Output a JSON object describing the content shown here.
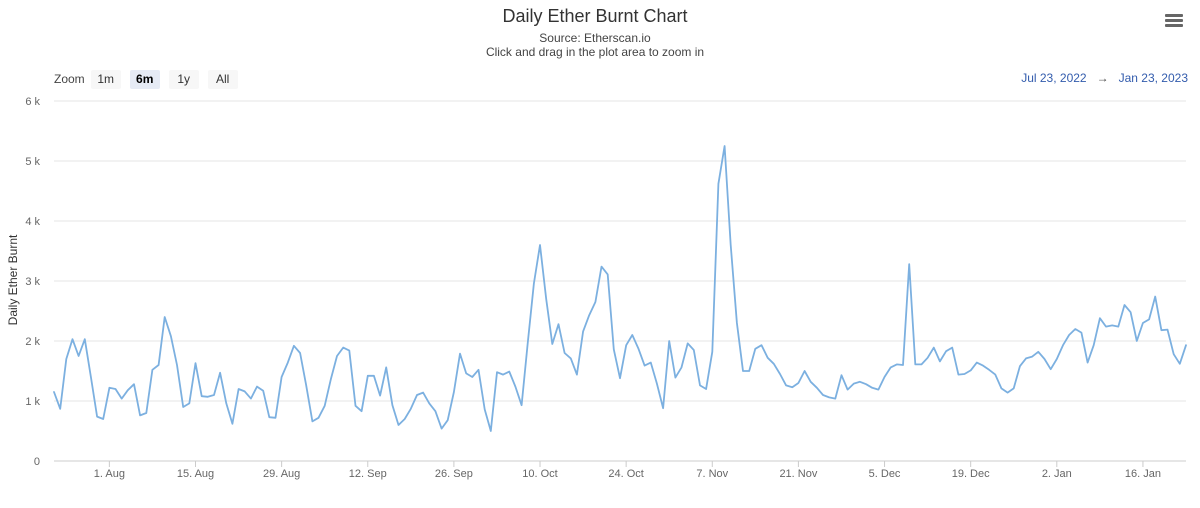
{
  "title": "Daily Ether Burnt Chart",
  "subtitle_source": "Source: Etherscan.io",
  "subtitle_hint": "Click and drag in the plot area to zoom in",
  "zoom": {
    "label": "Zoom",
    "buttons": [
      {
        "label": "1m",
        "active": false
      },
      {
        "label": "6m",
        "active": true
      },
      {
        "label": "1y",
        "active": false
      },
      {
        "label": "All",
        "active": false
      }
    ]
  },
  "range": {
    "from": "Jul 23, 2022",
    "arrow": "→",
    "to": "Jan 23, 2023"
  },
  "icons": {
    "menu": "hamburger-menu-icon"
  },
  "colors": {
    "line": "#7cb0e0",
    "grid": "#e6e6e6",
    "range_text": "#335cad"
  },
  "chart_data": {
    "type": "line",
    "title": "Daily Ether Burnt Chart",
    "xlabel": "",
    "ylabel": "Daily Ether Burnt",
    "xlim": [
      "2022-07-23",
      "2023-01-23"
    ],
    "ylim": [
      0,
      6000
    ],
    "yticks": [
      0,
      1000,
      2000,
      3000,
      4000,
      5000,
      6000
    ],
    "ytick_labels": [
      "0",
      "1 k",
      "2 k",
      "3 k",
      "4 k",
      "5 k",
      "6 k"
    ],
    "xticks": [
      "2022-08-01",
      "2022-08-15",
      "2022-08-29",
      "2022-09-12",
      "2022-09-26",
      "2022-10-10",
      "2022-10-24",
      "2022-11-07",
      "2022-11-21",
      "2022-12-05",
      "2022-12-19",
      "2023-01-02",
      "2023-01-16"
    ],
    "xtick_labels": [
      "1. Aug",
      "15. Aug",
      "29. Aug",
      "12. Sep",
      "26. Sep",
      "10. Oct",
      "24. Oct",
      "7. Nov",
      "21. Nov",
      "5. Dec",
      "19. Dec",
      "2. Jan",
      "16. Jan"
    ],
    "grid": true,
    "legend": "none",
    "series": [
      {
        "x_start": "2022-07-23",
        "x_step_days": 1,
        "values": [
          1150,
          870,
          1700,
          2030,
          1750,
          2030,
          1400,
          740,
          700,
          1220,
          1200,
          1040,
          1180,
          1280,
          760,
          800,
          1520,
          1600,
          2400,
          2080,
          1600,
          900,
          960,
          1630,
          1080,
          1070,
          1100,
          1470,
          960,
          620,
          1200,
          1160,
          1040,
          1240,
          1170,
          730,
          720,
          1400,
          1640,
          1920,
          1800,
          1260,
          660,
          720,
          920,
          1360,
          1750,
          1890,
          1840,
          920,
          830,
          1420,
          1420,
          1090,
          1560,
          930,
          600,
          700,
          870,
          1100,
          1140,
          960,
          830,
          540,
          680,
          1150,
          1790,
          1460,
          1400,
          1520,
          860,
          500,
          1480,
          1440,
          1490,
          1240,
          930,
          1960,
          2960,
          3600,
          2700,
          1950,
          2280,
          1800,
          1710,
          1440,
          2160,
          2430,
          2650,
          3240,
          3110,
          1860,
          1380,
          1930,
          2100,
          1870,
          1590,
          1640,
          1290,
          880,
          2000,
          1390,
          1560,
          1960,
          1850,
          1260,
          1200,
          1820,
          4620,
          5250,
          3600,
          2300,
          1500,
          1500,
          1870,
          1930,
          1720,
          1620,
          1450,
          1260,
          1230,
          1300,
          1500,
          1320,
          1220,
          1100,
          1060,
          1040,
          1430,
          1190,
          1290,
          1320,
          1280,
          1220,
          1190,
          1400,
          1560,
          1610,
          1600,
          3280,
          1610,
          1610,
          1720,
          1890,
          1660,
          1830,
          1890,
          1440,
          1450,
          1510,
          1640,
          1590,
          1520,
          1440,
          1210,
          1140,
          1210,
          1580,
          1710,
          1740,
          1820,
          1700,
          1530,
          1700,
          1930,
          2100,
          2200,
          2140,
          1640,
          1930,
          2380,
          2240,
          2260,
          2240,
          2600,
          2480,
          2000,
          2300,
          2360,
          2740,
          2180,
          2190,
          1780,
          1620,
          1930
        ]
      }
    ]
  }
}
